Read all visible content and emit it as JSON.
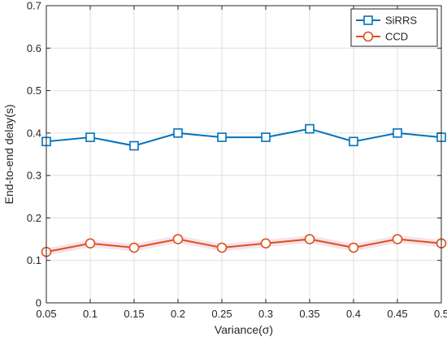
{
  "chart_data": {
    "type": "line",
    "title": "",
    "xlabel": "Variance(σ)",
    "ylabel": "End-to-end delay(s)",
    "x": [
      0.05,
      0.1,
      0.15,
      0.2,
      0.25,
      0.3,
      0.35,
      0.4,
      0.45,
      0.5
    ],
    "x_tick_labels": [
      "0.05",
      "0.1",
      "0.15",
      "0.2",
      "0.25",
      "0.3",
      "0.35",
      "0.4",
      "0.45",
      "0.5"
    ],
    "y_tick_labels": [
      "0",
      "0.1",
      "0.2",
      "0.3",
      "0.4",
      "0.5",
      "0.6",
      "0.7"
    ],
    "xlim": [
      0.05,
      0.5
    ],
    "ylim": [
      0,
      0.7
    ],
    "grid": true,
    "legend_position": "top-right",
    "series": [
      {
        "name": "SiRRS",
        "color": "#0072BD",
        "marker": "square",
        "values": [
          0.38,
          0.39,
          0.37,
          0.4,
          0.39,
          0.39,
          0.41,
          0.38,
          0.4,
          0.39
        ]
      },
      {
        "name": "CCD",
        "color": "#D95319",
        "marker": "circle",
        "values": [
          0.12,
          0.14,
          0.13,
          0.15,
          0.13,
          0.14,
          0.15,
          0.13,
          0.15,
          0.14
        ]
      }
    ]
  }
}
